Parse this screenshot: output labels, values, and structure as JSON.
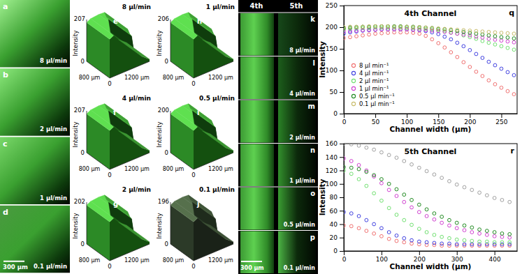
{
  "images": {
    "panels": [
      {
        "letter": "a",
        "rate": "8 µl/min"
      },
      {
        "letter": "b",
        "rate": "2 µl/min"
      },
      {
        "letter": "c",
        "rate": "1 µl/min"
      },
      {
        "letter": "d",
        "rate": "0.1 µl/min"
      }
    ],
    "scale_bar": "300 µm"
  },
  "surfaces": {
    "zlabel": "Intensity",
    "ylabel": "800 µm",
    "xlabel": "1200 µm",
    "panels": [
      {
        "letter": "e",
        "rate": "8 µl/min",
        "zmin": 0,
        "zmax": 207,
        "origin": 0
      },
      {
        "letter": "f",
        "rate": "4 µl/min",
        "zmin": 0,
        "zmax": 207,
        "origin": 0
      },
      {
        "letter": "g",
        "rate": "2 µl/min",
        "zmin": 0,
        "zmax": 202,
        "origin": 0
      },
      {
        "letter": "h",
        "rate": "1 µl/min",
        "zmin": 0,
        "zmax": 206,
        "origin": 0
      },
      {
        "letter": "i",
        "rate": "0.5 µl/min",
        "zmin": 0,
        "zmax": 200,
        "origin": 0
      },
      {
        "letter": "j",
        "rate": "0.1 µl/min",
        "zmin": 0,
        "zmax": 196,
        "origin": 0
      }
    ]
  },
  "strips": {
    "headers": [
      "4th",
      "5th"
    ],
    "scale_bar": "300 µm",
    "panels": [
      {
        "letter": "k",
        "rate": "8 µl/min"
      },
      {
        "letter": "l",
        "rate": "4 µl/min"
      },
      {
        "letter": "m",
        "rate": "2 µl/min"
      },
      {
        "letter": "n",
        "rate": "1 µl/min"
      },
      {
        "letter": "o",
        "rate": "0.5 µl/min"
      },
      {
        "letter": "p",
        "rate": "0.1 µl/min"
      }
    ]
  },
  "chart_data": [
    {
      "type": "scatter",
      "panel": "q",
      "title": "4th Channel",
      "xlabel": "Channel width (µm)",
      "ylabel": "Intensity",
      "marker": "circle",
      "legend": "lower left",
      "x": [
        0,
        10,
        20,
        30,
        40,
        50,
        60,
        70,
        80,
        90,
        100,
        110,
        120,
        130,
        140,
        150,
        160,
        170,
        180,
        190,
        200,
        210,
        220,
        230,
        240,
        250,
        260,
        270
      ],
      "xlim": [
        0,
        275
      ],
      "xticks": [
        0,
        50,
        100,
        150,
        200,
        250
      ],
      "ylim": [
        0,
        250
      ],
      "yticks": [
        0,
        50,
        100,
        150,
        200,
        250
      ],
      "series": [
        {
          "name": "8 µl min⁻¹",
          "color": "#f07070",
          "values": [
            175,
            177,
            179,
            181,
            183,
            185,
            186,
            187,
            188,
            188,
            188,
            187,
            185,
            180,
            172,
            163,
            153,
            142,
            131,
            119,
            108,
            97,
            87,
            77,
            68,
            60,
            52,
            45
          ]
        },
        {
          "name": "4 µl min⁻¹",
          "color": "#4040e0",
          "values": [
            185,
            188,
            190,
            192,
            193,
            194,
            195,
            195,
            195,
            195,
            195,
            194,
            193,
            191,
            188,
            184,
            178,
            172,
            164,
            156,
            147,
            138,
            129,
            120,
            112,
            104,
            96,
            89
          ]
        },
        {
          "name": "2 µl min⁻¹",
          "color": "#70e070",
          "values": [
            195,
            196,
            197,
            198,
            198,
            199,
            199,
            199,
            199,
            199,
            198,
            198,
            197,
            196,
            195,
            193,
            191,
            188,
            185,
            181,
            177,
            173,
            168,
            164,
            160,
            156,
            152,
            148
          ]
        },
        {
          "name": "1 µl min⁻¹",
          "color": "#d040d0",
          "values": [
            190,
            191,
            192,
            193,
            194,
            194,
            195,
            195,
            195,
            195,
            195,
            194,
            194,
            193,
            192,
            191,
            189,
            187,
            185,
            183,
            181,
            178,
            176,
            173,
            171,
            169,
            167,
            165
          ]
        },
        {
          "name": "0.5 µl min⁻¹",
          "color": "#208a20",
          "values": [
            198,
            199,
            200,
            201,
            201,
            202,
            202,
            202,
            202,
            202,
            201,
            201,
            200,
            199,
            198,
            196,
            195,
            193,
            191,
            189,
            187,
            185,
            183,
            181,
            179,
            177,
            176,
            174
          ]
        },
        {
          "name": "0.1 µl min⁻¹",
          "color": "#c8bc6a",
          "values": [
            200,
            201,
            201,
            201,
            202,
            202,
            202,
            202,
            201,
            201,
            201,
            200,
            200,
            199,
            198,
            197,
            196,
            195,
            194,
            193,
            192,
            191,
            190,
            189,
            188,
            187,
            186,
            185
          ]
        }
      ]
    },
    {
      "type": "scatter",
      "panel": "r",
      "title": "5th Channel",
      "xlabel": "Channel width (µm)",
      "ylabel": "Intensity",
      "marker": "circle",
      "x": [
        0,
        20,
        40,
        60,
        80,
        100,
        120,
        140,
        160,
        180,
        200,
        220,
        240,
        260,
        280,
        300,
        320,
        340,
        360,
        380,
        400,
        420,
        440
      ],
      "xlim": [
        0,
        460
      ],
      "xticks": [
        0,
        100,
        200,
        300,
        400
      ],
      "ylim": [
        0,
        160
      ],
      "yticks": [
        0,
        20,
        40,
        60,
        80,
        100,
        120,
        140,
        160
      ],
      "series": [
        {
          "color": "#f07070",
          "values": [
            38,
            37,
            34,
            30,
            26,
            22,
            18,
            15,
            13,
            11,
            10,
            9,
            9,
            8,
            8,
            8,
            8,
            8,
            8,
            8,
            8,
            8,
            8
          ]
        },
        {
          "color": "#4040e0",
          "values": [
            58,
            56,
            52,
            46,
            40,
            34,
            28,
            23,
            19,
            16,
            14,
            13,
            12,
            11,
            11,
            10,
            10,
            10,
            10,
            10,
            10,
            10,
            10
          ]
        },
        {
          "color": "#70e070",
          "values": [
            120,
            115,
            107,
            97,
            86,
            75,
            64,
            54,
            46,
            39,
            33,
            28,
            24,
            21,
            19,
            17,
            16,
            15,
            14,
            14,
            13,
            13,
            13
          ]
        },
        {
          "color": "#d040d0",
          "values": [
            138,
            134,
            128,
            120,
            111,
            101,
            91,
            82,
            73,
            65,
            58,
            52,
            47,
            42,
            38,
            34,
            31,
            28,
            26,
            24,
            22,
            21,
            20
          ]
        },
        {
          "color": "#208a20",
          "values": [
            125,
            124,
            122,
            118,
            113,
            107,
            100,
            92,
            84,
            76,
            69,
            62,
            56,
            51,
            46,
            42,
            38,
            35,
            32,
            30,
            28,
            26,
            25
          ]
        },
        {
          "color": "#a0a0a0",
          "values": [
            160,
            159,
            157,
            154,
            151,
            147,
            143,
            139,
            134,
            129,
            124,
            119,
            114,
            109,
            104,
            99,
            95,
            91,
            87,
            83,
            79,
            76,
            73
          ]
        }
      ]
    }
  ]
}
